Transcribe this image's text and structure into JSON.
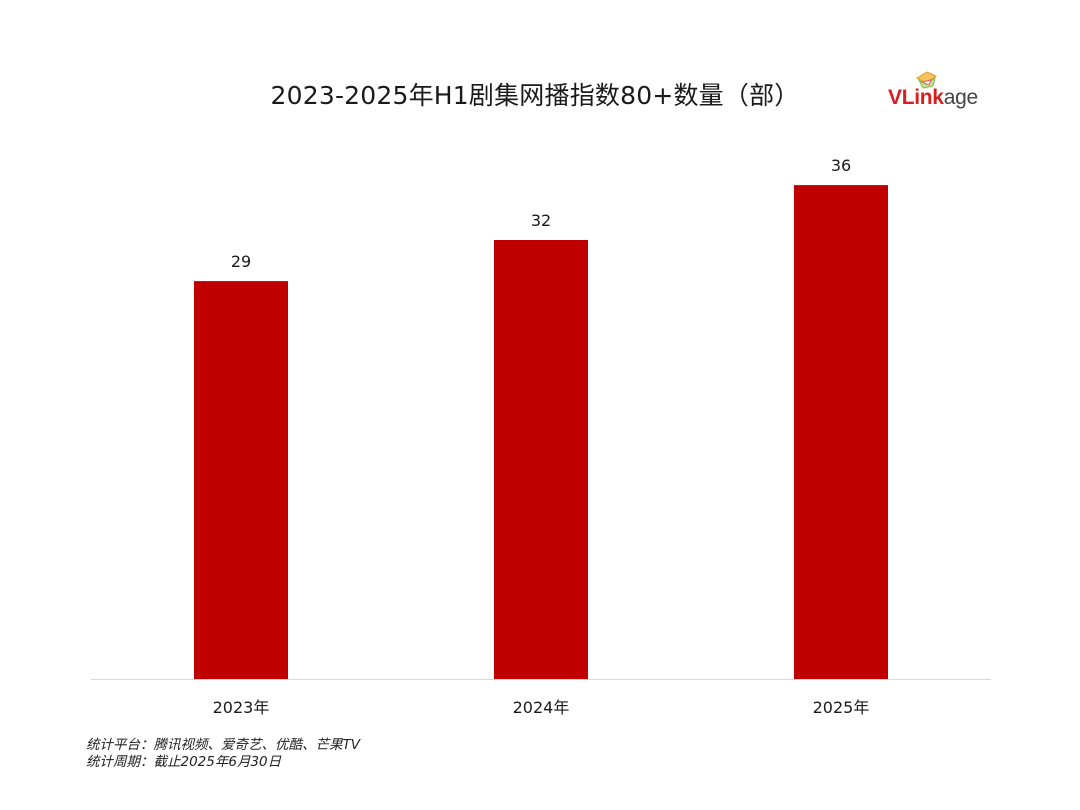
{
  "chart_data": {
    "type": "bar",
    "title": "2023-2025年H1剧集网播指数80+数量（部）",
    "categories": [
      "2023年",
      "2024年",
      "2025年"
    ],
    "values": [
      29,
      32,
      36
    ],
    "ylim": [
      0,
      36
    ],
    "grid": false,
    "legend": "none",
    "data_labels": true,
    "bar_color": "#c00000",
    "axis_color": "#d9d9d9"
  },
  "logo": {
    "text_v": "V",
    "text_link": "Link",
    "text_age": "age",
    "brand_color": "#d81e1e",
    "mark_colors": [
      "#f5a623",
      "#7cc142",
      "#e85d5d"
    ]
  },
  "notes": {
    "platforms": "统计平台：腾讯视频、爱奇艺、优酷、芒果TV",
    "period": "统计周期：截止2025年6月30日"
  }
}
